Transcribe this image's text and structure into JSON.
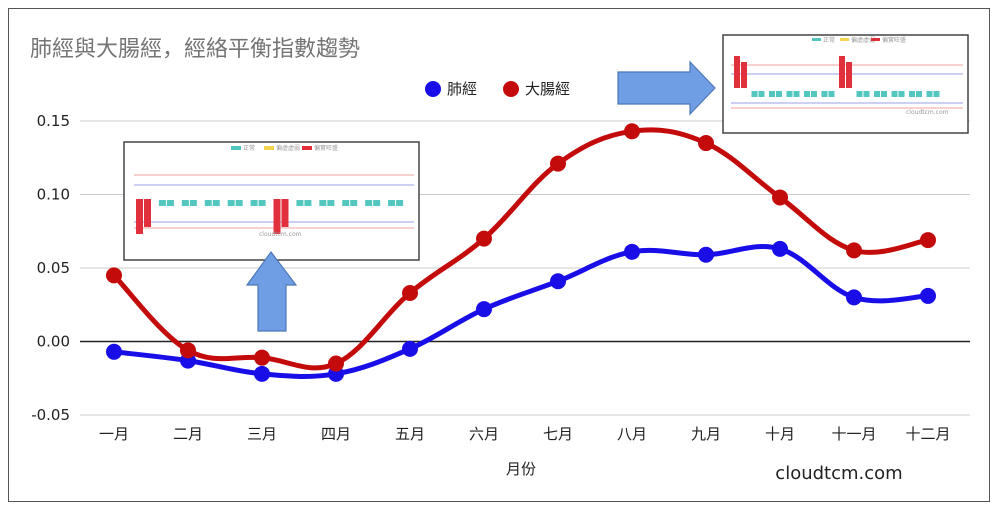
{
  "chart_data": {
    "type": "line",
    "title": "肺經與大腸經，經絡平衡指數趨勢",
    "xlabel": "月份",
    "ylabel": "",
    "categories": [
      "一月",
      "二月",
      "三月",
      "四月",
      "五月",
      "六月",
      "七月",
      "八月",
      "九月",
      "十月",
      "十一月",
      "十二月"
    ],
    "ylim": [
      -0.05,
      0.15
    ],
    "yticks": [
      "0.15",
      "0.10",
      "0.05",
      "0.00",
      "-0.05"
    ],
    "ytick_values": [
      0.15,
      0.1,
      0.05,
      0.0,
      -0.05
    ],
    "grid": true,
    "legend_position": "top",
    "smooth": true,
    "series": [
      {
        "name": "肺經",
        "color": "#1a0ee8",
        "values": [
          -0.007,
          -0.013,
          -0.022,
          -0.022,
          -0.005,
          0.022,
          0.041,
          0.061,
          0.059,
          0.063,
          0.03,
          0.031
        ]
      },
      {
        "name": "大腸經",
        "color": "#c40b0b",
        "values": [
          0.045,
          -0.006,
          -0.011,
          -0.015,
          0.033,
          0.07,
          0.121,
          0.143,
          0.135,
          0.098,
          0.062,
          0.069
        ]
      }
    ]
  },
  "credit": "cloudtcm.com",
  "insets": [
    {
      "watermark": "cloudtcm.com",
      "legend": [
        "正常",
        "偏虛虛弱",
        "偏實旺盛"
      ]
    },
    {
      "watermark": "cloudtcm.com",
      "legend": [
        "正常",
        "偏虛虛弱",
        "偏實旺盛"
      ]
    }
  ],
  "colors": {
    "arrow": "#6f9ee4",
    "arrow_stroke": "#4c78b8",
    "grid": "#cccccc",
    "zero_line": "#222222",
    "inset_teal": "#54c6c0",
    "inset_red": "#e0303c",
    "inset_yellow": "#f2d54e"
  }
}
